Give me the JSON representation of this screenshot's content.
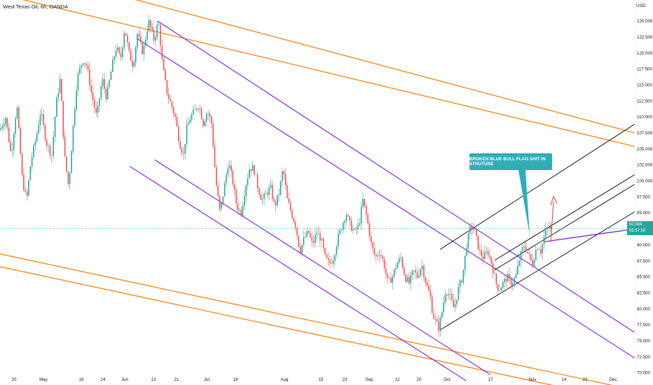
{
  "header": {
    "title": "West Texas Oil, 6h, OANDA",
    "currency": "USD"
  },
  "callout": {
    "text": "BROKEN BLUE BULL FLAG SHIT IN STRUTURE"
  },
  "last_price": {
    "value": "92.584",
    "countdown": "05:57:50"
  },
  "colors": {
    "up": "#26a69a",
    "down": "#ef5350",
    "orange": "#f57c00",
    "purple": "#7b1fe0",
    "black": "#000000",
    "callout": "#2eafb8",
    "arrow": "#e53935",
    "price_line": "#26a69a"
  },
  "chart_data": {
    "type": "candlestick",
    "title": "West Texas Oil, 6h, OANDA",
    "y_ticks": [
      "125.000",
      "122.500",
      "120.000",
      "117.500",
      "115.000",
      "112.500",
      "110.000",
      "107.500",
      "105.000",
      "102.500",
      "100.000",
      "97.500",
      "95.000",
      "92.500",
      "90.000",
      "87.500",
      "85.000",
      "82.500",
      "80.000",
      "77.500",
      "75.000",
      "72.500",
      "70.000"
    ],
    "x_ticks": [
      "20",
      "May",
      "16",
      "24",
      "Jun",
      "13",
      "21",
      "Jul",
      "18",
      "Aug",
      "15",
      "23",
      "Sep",
      "12",
      "20",
      "Oct",
      "17",
      "Nov",
      "14",
      "22",
      "Dec"
    ],
    "ylim": [
      69.2,
      127.2
    ],
    "price_path": [
      [
        0,
        108
      ],
      [
        8,
        110
      ],
      [
        16,
        104
      ],
      [
        24,
        112
      ],
      [
        32,
        100
      ],
      [
        38,
        97
      ],
      [
        44,
        103
      ],
      [
        52,
        107
      ],
      [
        58,
        111
      ],
      [
        66,
        106
      ],
      [
        74,
        104
      ],
      [
        80,
        112
      ],
      [
        86,
        116
      ],
      [
        92,
        104
      ],
      [
        98,
        99
      ],
      [
        104,
        108
      ],
      [
        110,
        116
      ],
      [
        118,
        119
      ],
      [
        124,
        118
      ],
      [
        130,
        114
      ],
      [
        138,
        110
      ],
      [
        146,
        116
      ],
      [
        152,
        113
      ],
      [
        160,
        118
      ],
      [
        166,
        121
      ],
      [
        172,
        119
      ],
      [
        178,
        124
      ],
      [
        184,
        120
      ],
      [
        190,
        118
      ],
      [
        196,
        123
      ],
      [
        204,
        120
      ],
      [
        212,
        125
      ],
      [
        220,
        122
      ],
      [
        226,
        125
      ],
      [
        232,
        118
      ],
      [
        238,
        114
      ],
      [
        244,
        112
      ],
      [
        250,
        110
      ],
      [
        256,
        106
      ],
      [
        262,
        104
      ],
      [
        266,
        108
      ],
      [
        272,
        110
      ],
      [
        278,
        111
      ],
      [
        284,
        112
      ],
      [
        290,
        109
      ],
      [
        296,
        111
      ],
      [
        302,
        109
      ],
      [
        308,
        100
      ],
      [
        314,
        95
      ],
      [
        320,
        99
      ],
      [
        326,
        103
      ],
      [
        332,
        100
      ],
      [
        338,
        96
      ],
      [
        344,
        95
      ],
      [
        350,
        99
      ],
      [
        356,
        102
      ],
      [
        362,
        102
      ],
      [
        368,
        99
      ],
      [
        374,
        97
      ],
      [
        380,
        98
      ],
      [
        386,
        99
      ],
      [
        392,
        96
      ],
      [
        398,
        98
      ],
      [
        404,
        102
      ],
      [
        410,
        97
      ],
      [
        416,
        95
      ],
      [
        422,
        93
      ],
      [
        428,
        89
      ],
      [
        434,
        91
      ],
      [
        440,
        92
      ],
      [
        446,
        90
      ],
      [
        452,
        92
      ],
      [
        458,
        91
      ],
      [
        464,
        88
      ],
      [
        470,
        87
      ],
      [
        476,
        88
      ],
      [
        482,
        91
      ],
      [
        488,
        93
      ],
      [
        494,
        95
      ],
      [
        500,
        93
      ],
      [
        506,
        92
      ],
      [
        512,
        93
      ],
      [
        518,
        97
      ],
      [
        524,
        94
      ],
      [
        530,
        90
      ],
      [
        536,
        88
      ],
      [
        542,
        89
      ],
      [
        548,
        87
      ],
      [
        554,
        84
      ],
      [
        560,
        85
      ],
      [
        566,
        87
      ],
      [
        572,
        88
      ],
      [
        578,
        85
      ],
      [
        584,
        84
      ],
      [
        590,
        86
      ],
      [
        596,
        85
      ],
      [
        602,
        87
      ],
      [
        608,
        84
      ],
      [
        614,
        82
      ],
      [
        618,
        79
      ],
      [
        622,
        78
      ],
      [
        626,
        77
      ],
      [
        630,
        79
      ],
      [
        636,
        83
      ],
      [
        642,
        82
      ],
      [
        648,
        80
      ],
      [
        654,
        83
      ],
      [
        660,
        85
      ],
      [
        666,
        90
      ],
      [
        672,
        93
      ],
      [
        678,
        92
      ],
      [
        684,
        89
      ],
      [
        690,
        88
      ],
      [
        696,
        89
      ],
      [
        702,
        87
      ],
      [
        708,
        84
      ],
      [
        712,
        83
      ],
      [
        718,
        84
      ],
      [
        724,
        85
      ],
      [
        730,
        84
      ],
      [
        736,
        85
      ],
      [
        742,
        88
      ],
      [
        748,
        90
      ],
      [
        752,
        89
      ],
      [
        756,
        88
      ],
      [
        760,
        87
      ],
      [
        764,
        89
      ],
      [
        768,
        90
      ],
      [
        772,
        89
      ],
      [
        776,
        91
      ],
      [
        780,
        92.6
      ],
      [
        786,
        92.584
      ]
    ],
    "drawings": {
      "orange_channel_upper": [
        [
          [
            0,
            134
          ],
          [
            906,
            107.5
          ]
        ],
        [
          [
            0,
            129.2
          ],
          [
            906,
            105.4
          ]
        ]
      ],
      "orange_channel_lower": [
        [
          [
            0,
            88.6
          ],
          [
            906,
            67.3
          ]
        ],
        [
          [
            0,
            86.6
          ],
          [
            906,
            65.3
          ]
        ]
      ],
      "purple_channel": [
        [
          [
            225,
            125
          ],
          [
            906,
            76.3
          ]
        ],
        [
          [
            195,
            122.3
          ],
          [
            906,
            72.3
          ]
        ],
        [
          [
            185,
            102.3
          ],
          [
            665,
            68.8
          ]
        ],
        [
          [
            221,
            103.3
          ],
          [
            700,
            69.7
          ]
        ]
      ],
      "black_channel": [
        [
          [
            628,
            89.3
          ],
          [
            906,
            108.9
          ]
        ],
        [
          [
            628,
            76.7
          ],
          [
            906,
            95.2
          ]
        ],
        [
          [
            706,
            87.6
          ],
          [
            906,
            101
          ]
        ],
        [
          [
            706,
            86.1
          ],
          [
            906,
            99.5
          ]
        ]
      ],
      "purple_breakout_line": [
        [
          776,
          90.5
        ],
        [
          906,
          92.5
        ]
      ]
    }
  }
}
